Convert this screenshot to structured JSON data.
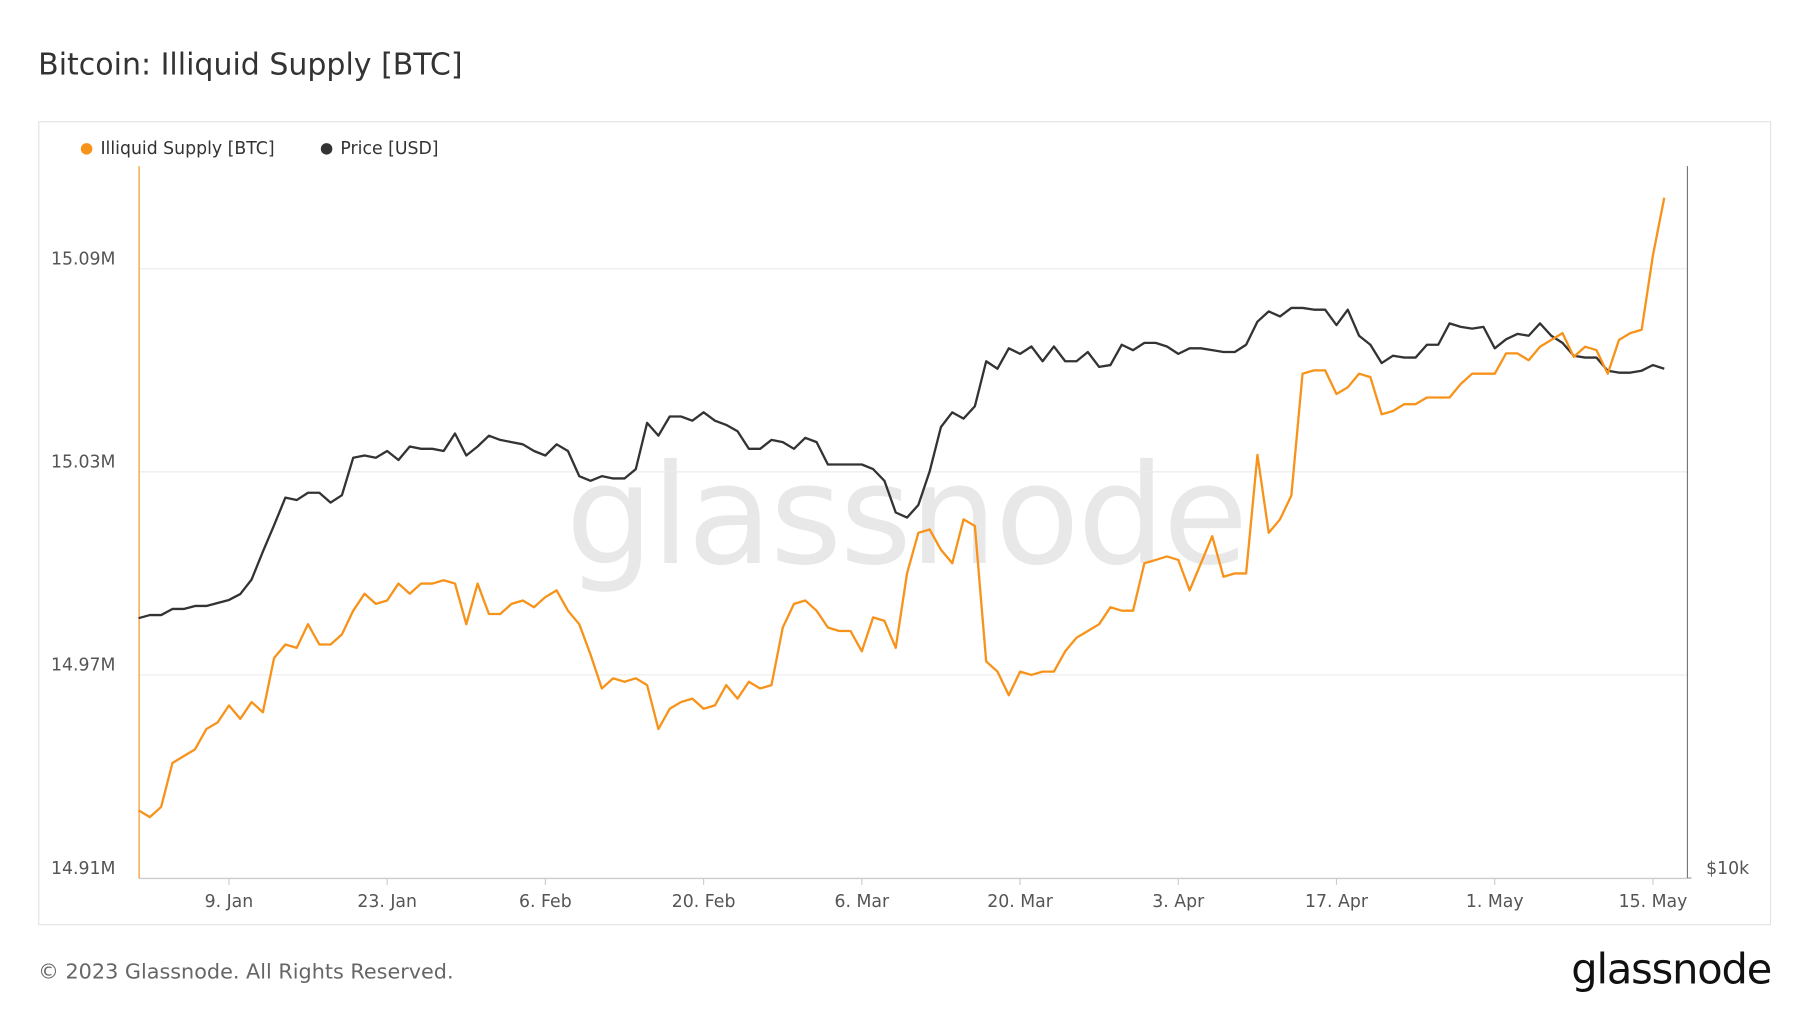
{
  "chart_data": {
    "type": "line",
    "title": "Bitcoin: Illiquid Supply [BTC]",
    "x": [
      1,
      2,
      3,
      4,
      5,
      6,
      7,
      8,
      9,
      10,
      11,
      12,
      13,
      14,
      15,
      16,
      17,
      18,
      19,
      20,
      21,
      22,
      23,
      24,
      25,
      26,
      27,
      28,
      29,
      30,
      31,
      32,
      33,
      34,
      35,
      36,
      37,
      38,
      39,
      40,
      41,
      42,
      43,
      44,
      45,
      46,
      47,
      48,
      49,
      50,
      51,
      52,
      53,
      54,
      55,
      56,
      57,
      58,
      59,
      60,
      61,
      62,
      63,
      64,
      65,
      66,
      67,
      68,
      69,
      70,
      71,
      72,
      73,
      74,
      75,
      76,
      77,
      78,
      79,
      80,
      81,
      82,
      83,
      84,
      85,
      86,
      87,
      88,
      89,
      90,
      91,
      92,
      93,
      94,
      95,
      96,
      97,
      98,
      99,
      100,
      101,
      102,
      103,
      104,
      105,
      106,
      107,
      108,
      109,
      110,
      111,
      112,
      113,
      114,
      115,
      116,
      117,
      118,
      119,
      120,
      121,
      122,
      123,
      124,
      125,
      126,
      127,
      128,
      129,
      130,
      131,
      132,
      133,
      134,
      135,
      136
    ],
    "xlim": [
      1,
      138
    ],
    "xticks": [
      {
        "value": 9,
        "label": "9. Jan"
      },
      {
        "value": 23,
        "label": "23. Jan"
      },
      {
        "value": 37,
        "label": "6. Feb"
      },
      {
        "value": 51,
        "label": "20. Feb"
      },
      {
        "value": 65,
        "label": "6. Mar"
      },
      {
        "value": 79,
        "label": "20. Mar"
      },
      {
        "value": 93,
        "label": "3. Apr"
      },
      {
        "value": 107,
        "label": "17. Apr"
      },
      {
        "value": 121,
        "label": "1. May"
      },
      {
        "value": 135,
        "label": "15. May"
      }
    ],
    "ylim": [
      14910000,
      15120000
    ],
    "yticks": [
      {
        "value": 14910000,
        "label": "14.91M"
      },
      {
        "value": 14970000,
        "label": "14.97M"
      },
      {
        "value": 15030000,
        "label": "15.03M"
      },
      {
        "value": 15090000,
        "label": "15.09M"
      }
    ],
    "y2lim": [
      10000,
      40000
    ],
    "y2scale": "log",
    "y2ticks": [
      {
        "value": 10000,
        "label": "$10k"
      }
    ],
    "grid": true,
    "legend": "top-left",
    "series": [
      {
        "name": "Illiquid Supply [BTC]",
        "color": "#f7931a",
        "axis": "y",
        "values": [
          14930000,
          14928000,
          14931000,
          14944000,
          14946000,
          14948000,
          14954000,
          14956000,
          14961000,
          14957000,
          14962000,
          14959000,
          14975000,
          14979000,
          14978000,
          14985000,
          14979000,
          14979000,
          14982000,
          14989000,
          14994000,
          14991000,
          14992000,
          14997000,
          14994000,
          14997000,
          14997000,
          14998000,
          14997000,
          14985000,
          14997000,
          14988000,
          14988000,
          14991000,
          14992000,
          14990000,
          14993000,
          14995000,
          14989000,
          14985000,
          14976000,
          14966000,
          14969000,
          14968000,
          14969000,
          14967000,
          14954000,
          14960000,
          14962000,
          14963000,
          14960000,
          14961000,
          14967000,
          14963000,
          14968000,
          14966000,
          14967000,
          14984000,
          14991000,
          14992000,
          14989000,
          14984000,
          14983000,
          14983000,
          14977000,
          14987000,
          14986000,
          14978000,
          15000000,
          15012000,
          15013000,
          15007000,
          15003000,
          15016000,
          15014000,
          14974000,
          14971000,
          14964000,
          14971000,
          14970000,
          14971000,
          14971000,
          14977000,
          14981000,
          14983000,
          14985000,
          14990000,
          14989000,
          14989000,
          15003000,
          15004000,
          15005000,
          15004000,
          14995000,
          15003000,
          15011000,
          14999000,
          15000000,
          15000000,
          15035000,
          15012000,
          15016000,
          15023000,
          15059000,
          15060000,
          15060000,
          15053000,
          15055000,
          15059000,
          15058000,
          15047000,
          15048000,
          15050000,
          15050000,
          15052000,
          15052000,
          15052000,
          15056000,
          15059000,
          15059000,
          15059000,
          15065000,
          15065000,
          15063000,
          15067000,
          15069000,
          15071000,
          15064000,
          15067000,
          15066000,
          15059000,
          15069000,
          15071000,
          15072000,
          15094000,
          15111000
        ]
      },
      {
        "name": "Price [USD]",
        "color": "#333333",
        "axis": "y2",
        "values": [
          16600,
          16700,
          16700,
          16900,
          16900,
          17000,
          17000,
          17100,
          17200,
          17400,
          17900,
          18900,
          19900,
          21000,
          20900,
          21200,
          21200,
          20800,
          21100,
          22700,
          22800,
          22700,
          23000,
          22600,
          23200,
          23100,
          23100,
          23000,
          23800,
          22800,
          23200,
          23700,
          23500,
          23400,
          23300,
          23000,
          22800,
          23300,
          23000,
          21900,
          21700,
          21900,
          21800,
          21800,
          22200,
          24300,
          23700,
          24600,
          24600,
          24400,
          24800,
          24400,
          24200,
          23900,
          23100,
          23100,
          23500,
          23400,
          23100,
          23600,
          23400,
          22400,
          22400,
          22400,
          22400,
          22200,
          21700,
          20400,
          20200,
          20700,
          22100,
          24100,
          24800,
          24500,
          25100,
          27400,
          27000,
          28100,
          27800,
          28200,
          27400,
          28200,
          27400,
          27400,
          27900,
          27100,
          27200,
          28300,
          28000,
          28400,
          28400,
          28200,
          27800,
          28100,
          28100,
          28000,
          27900,
          27900,
          28300,
          29600,
          30200,
          29900,
          30400,
          30400,
          30300,
          30300,
          29400,
          30300,
          28800,
          28300,
          27300,
          27700,
          27600,
          27600,
          28300,
          28300,
          29500,
          29300,
          29200,
          29300,
          28100,
          28600,
          28900,
          28800,
          29500,
          28800,
          28400,
          27700,
          27600,
          27600,
          26900,
          26800,
          26800,
          26900,
          27200,
          27000
        ]
      }
    ]
  },
  "watermark": "glassnode",
  "footer": "© 2023 Glassnode. All Rights Reserved.",
  "logo": "glassnode"
}
